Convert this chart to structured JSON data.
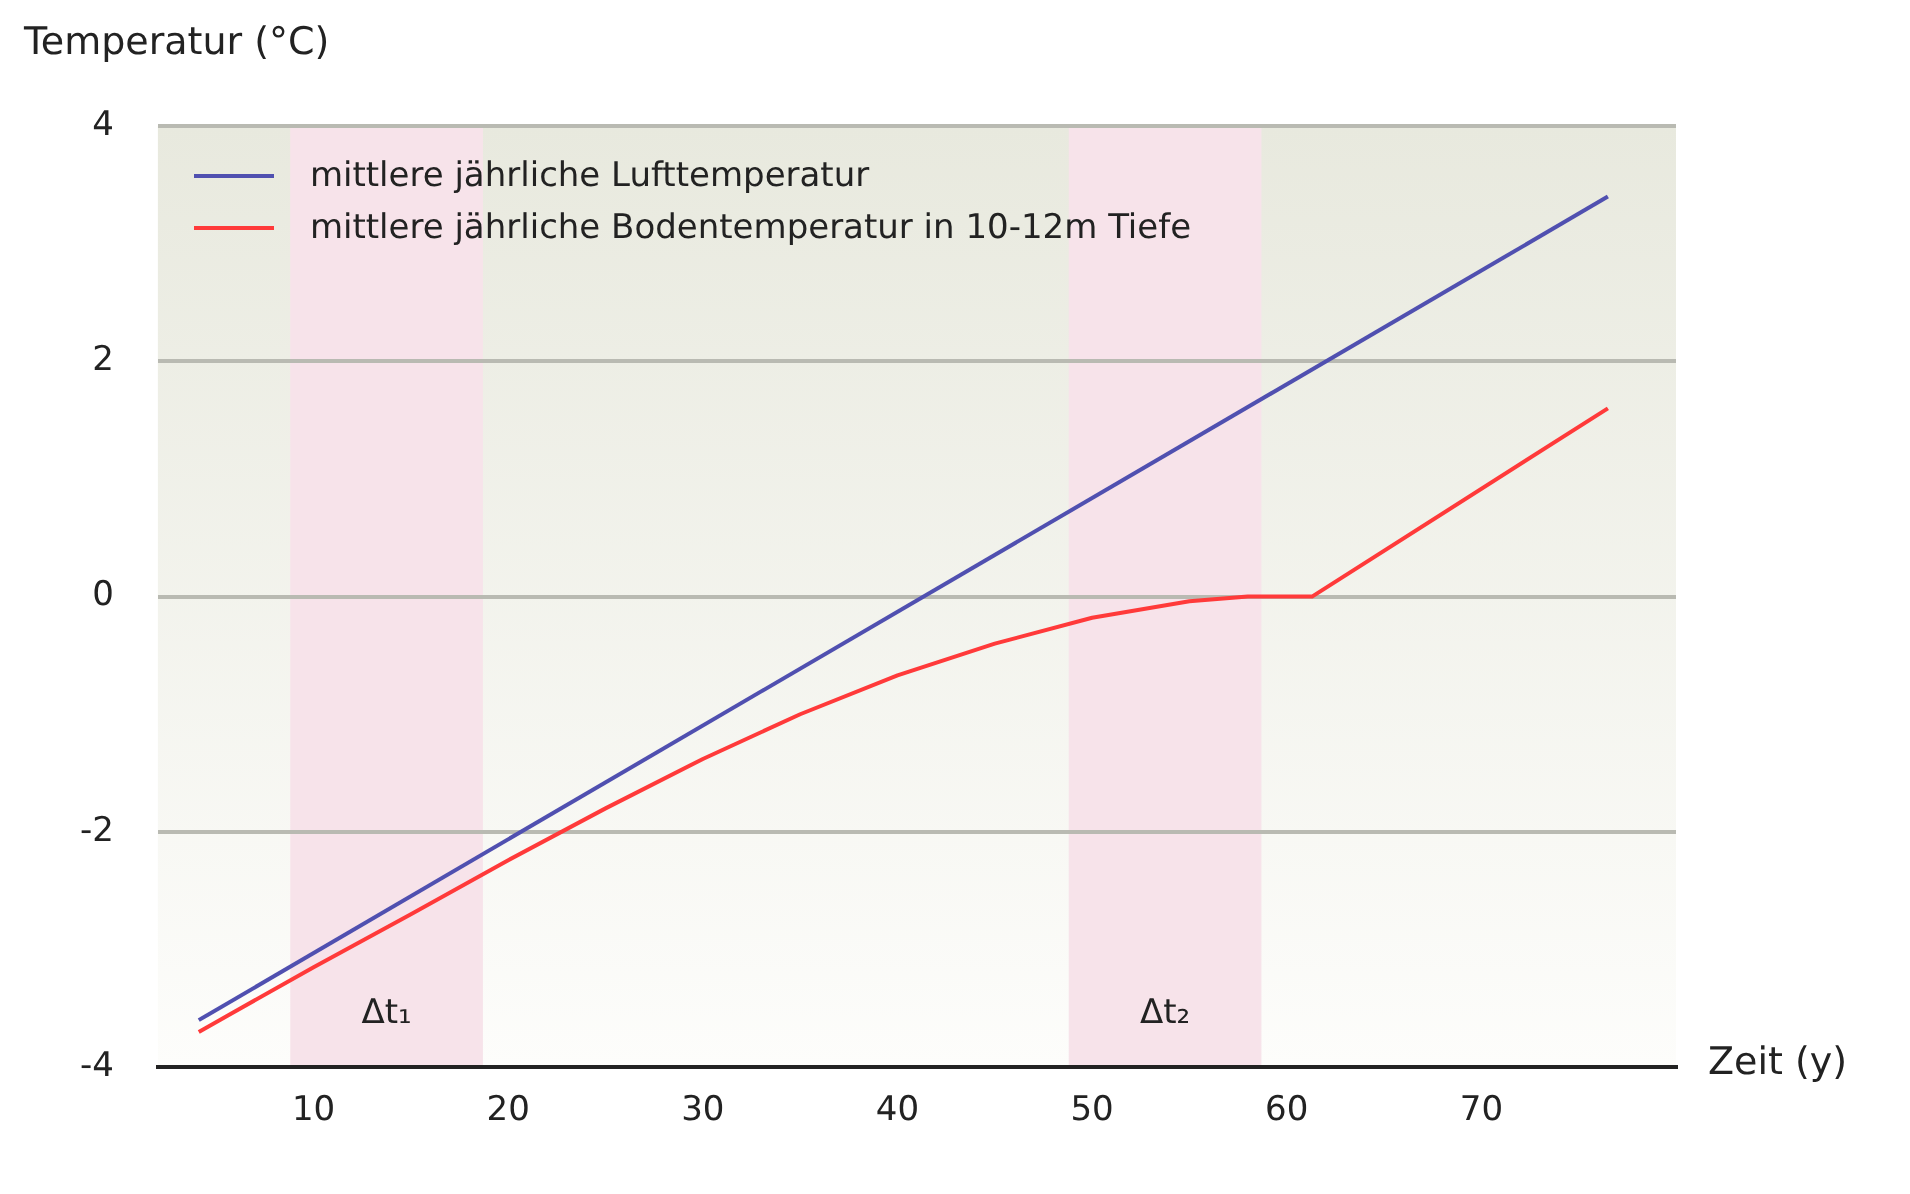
{
  "chart_data": {
    "type": "line",
    "xlabel": "Zeit (y)",
    "ylabel": "Temperatur (°C)",
    "xlim": [
      2,
      80
    ],
    "xticks": [
      10,
      20,
      30,
      40,
      50,
      60,
      70
    ],
    "ylim": [
      -4,
      4
    ],
    "yticks": [
      -4,
      -2,
      0,
      2,
      4
    ],
    "series": [
      {
        "name": "mittlere jährliche Lufttemperatur",
        "color": "#5050b0",
        "x": [
          4.1,
          76.5
        ],
        "values": [
          -3.6,
          3.4
        ]
      },
      {
        "name": "mittlere jährliche Bodentemperatur in 10-12m Tiefe",
        "color": "#ff3a3a",
        "x": [
          4.1,
          10,
          15,
          20,
          25,
          30,
          35,
          40,
          45,
          50,
          55,
          58,
          61.3,
          76.5
        ],
        "values": [
          -3.7,
          -3.15,
          -2.7,
          -2.24,
          -1.8,
          -1.38,
          -1.0,
          -0.67,
          -0.4,
          -0.18,
          -0.04,
          0,
          0,
          1.6
        ]
      }
    ],
    "bands": [
      {
        "axis": "x",
        "from": 8.8,
        "to": 18.7,
        "label": "Δt₁",
        "color": "#f7e3ea"
      },
      {
        "axis": "x",
        "from": 48.8,
        "to": 58.7,
        "label": "Δt₂",
        "color": "#f7e3ea"
      }
    ],
    "grid": "y",
    "legend": "top left",
    "marker": "none",
    "line_style": "solid"
  }
}
